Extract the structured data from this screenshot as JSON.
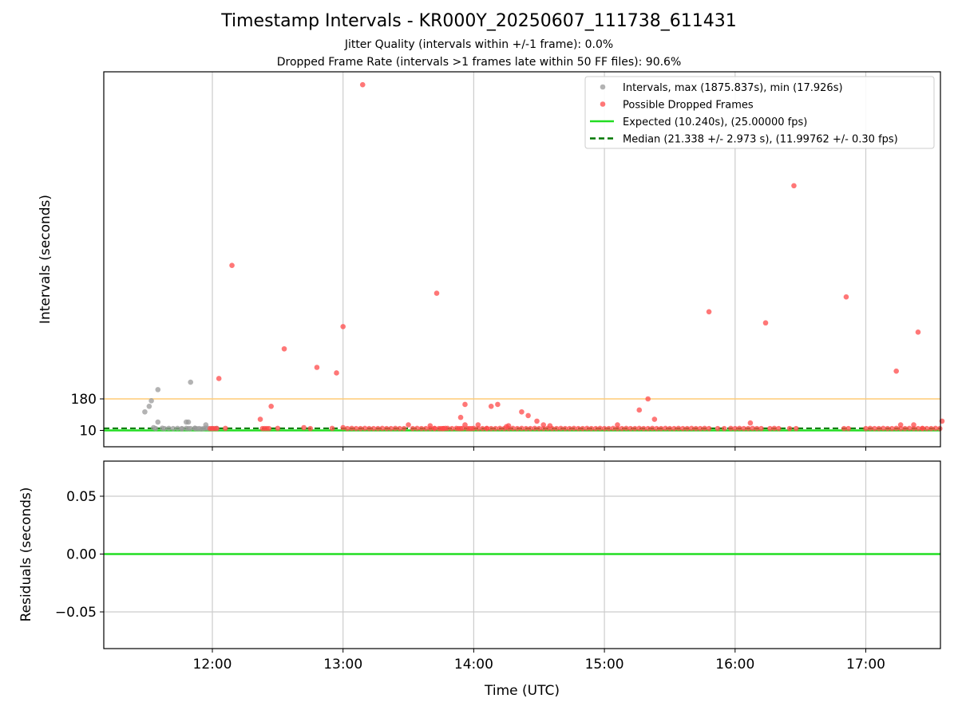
{
  "titles": {
    "main": "Timestamp Intervals - KR000Y_20250607_111738_611431",
    "sub1": "Jitter Quality (intervals within +/-1 frame): 0.0%",
    "sub2": "Dropped Frame Rate (intervals >1 frames late within 50 FF files): 90.6%"
  },
  "chart_data": [
    {
      "type": "scatter",
      "ylabel": "Intervals (seconds)",
      "xlabel": "",
      "x_ticks": [
        "12:00",
        "13:00",
        "14:00",
        "15:00",
        "16:00",
        "17:00"
      ],
      "y_ticks": [
        10,
        180
      ],
      "xlim": [
        "11:10",
        "17:36"
      ],
      "grid_x": true,
      "legend_position": "top-right",
      "colors": {
        "intervals": "#9a9a9a",
        "dropped": "#ff4a4a",
        "expected": "#22dd22",
        "median": "#007700",
        "threshold": "#ffcc77"
      },
      "reference_lines": [
        {
          "name": "threshold",
          "y": 180
        },
        {
          "name": "expected",
          "y": 10.24
        },
        {
          "name": "median",
          "y": 21.338
        }
      ],
      "legend": [
        {
          "key": "intervals",
          "label": "Intervals, max (1875.837s), min (17.926s)"
        },
        {
          "key": "dropped",
          "label": "Possible Dropped Frames"
        },
        {
          "key": "expected",
          "label": "Expected (10.240s), (25.00000 fps)"
        },
        {
          "key": "median",
          "label": "Median (21.338 +/- 2.973 s), (11.99762 +/- 0.30 fps)"
        }
      ],
      "series": [
        {
          "name": "Intervals, max (1875.837s), min (17.926s)",
          "points": [
            [
              "11:29",
              110
            ],
            [
              "11:31",
              140
            ],
            [
              "11:32",
              170
            ],
            [
              "11:33",
              25
            ],
            [
              "11:34",
              20
            ],
            [
              "11:35",
              55
            ],
            [
              "11:37",
              22
            ],
            [
              "11:38",
              20
            ],
            [
              "11:40",
              21
            ],
            [
              "11:42",
              20
            ],
            [
              "11:44",
              21
            ],
            [
              "11:46",
              20
            ],
            [
              "11:48",
              21
            ],
            [
              "11:50",
              20
            ],
            [
              "11:52",
              21
            ],
            [
              "11:54",
              20
            ],
            [
              "11:56",
              20
            ],
            [
              "11:58",
              21
            ],
            [
              "12:00",
              20
            ],
            [
              "12:02",
              21
            ],
            [
              "11:35",
              230
            ],
            [
              "11:46",
              18
            ],
            [
              "11:49",
              20
            ],
            [
              "11:52",
              22
            ],
            [
              "11:53",
              19
            ],
            [
              "11:55",
              18
            ],
            [
              "11:57",
              22
            ],
            [
              "11:48",
              55
            ],
            [
              "11:49",
              55
            ],
            [
              "11:50",
              270
            ],
            [
              "11:57",
              40
            ]
          ]
        },
        {
          "name": "Possible Dropped Frames",
          "points": [
            [
              "11:59",
              20
            ],
            [
              "12:00",
              20
            ],
            [
              "12:01",
              20
            ],
            [
              "12:02",
              20
            ],
            [
              "12:03",
              290
            ],
            [
              "12:06",
              21
            ],
            [
              "12:09",
              900
            ],
            [
              "12:22",
              70
            ],
            [
              "12:23",
              20
            ],
            [
              "12:24",
              20
            ],
            [
              "12:25",
              20
            ],
            [
              "12:26",
              20
            ],
            [
              "12:27",
              140
            ],
            [
              "12:30",
              21
            ],
            [
              "12:33",
              450
            ],
            [
              "12:42",
              25
            ],
            [
              "12:45",
              20
            ],
            [
              "12:48",
              350
            ],
            [
              "12:55",
              21
            ],
            [
              "12:57",
              320
            ],
            [
              "13:00",
              25
            ],
            [
              "13:02",
              20
            ],
            [
              "13:04",
              21
            ],
            [
              "13:06",
              20
            ],
            [
              "13:08",
              20
            ],
            [
              "13:10",
              21
            ],
            [
              "13:12",
              20
            ],
            [
              "13:14",
              20
            ],
            [
              "13:16",
              20
            ],
            [
              "13:18",
              21
            ],
            [
              "13:20",
              20
            ],
            [
              "13:22",
              20
            ],
            [
              "13:24",
              21
            ],
            [
              "13:26",
              20
            ],
            [
              "13:28",
              20
            ],
            [
              "13:30",
              40
            ],
            [
              "13:32",
              20
            ],
            [
              "13:34",
              21
            ],
            [
              "13:36",
              20
            ],
            [
              "13:38",
              20
            ],
            [
              "13:40",
              20
            ],
            [
              "13:42",
              21
            ],
            [
              "13:44",
              20
            ],
            [
              "13:46",
              20
            ],
            [
              "13:48",
              21
            ],
            [
              "13:50",
              20
            ],
            [
              "13:52",
              21
            ],
            [
              "13:54",
              20
            ],
            [
              "13:56",
              40
            ],
            [
              "13:58",
              20
            ],
            [
              "13:00",
              570
            ],
            [
              "13:09",
              1875
            ],
            [
              "13:40",
              35
            ],
            [
              "13:42",
              20
            ],
            [
              "13:43",
              750
            ],
            [
              "13:45",
              20
            ],
            [
              "13:46",
              20
            ],
            [
              "13:47",
              21
            ],
            [
              "13:53",
              20
            ],
            [
              "13:55",
              21
            ],
            [
              "13:57",
              20
            ],
            [
              "13:59",
              20
            ],
            [
              "14:00",
              21
            ],
            [
              "14:02",
              20
            ],
            [
              "14:04",
              20
            ],
            [
              "14:06",
              21
            ],
            [
              "14:08",
              20
            ],
            [
              "14:10",
              20
            ],
            [
              "14:12",
              21
            ],
            [
              "14:14",
              20
            ],
            [
              "14:16",
              20
            ],
            [
              "14:18",
              21
            ],
            [
              "14:20",
              20
            ],
            [
              "14:22",
              21
            ],
            [
              "14:24",
              20
            ],
            [
              "14:26",
              20
            ],
            [
              "14:28",
              21
            ],
            [
              "14:30",
              20
            ],
            [
              "14:32",
              20
            ],
            [
              "14:34",
              21
            ],
            [
              "14:36",
              20
            ],
            [
              "14:38",
              20
            ],
            [
              "14:40",
              21
            ],
            [
              "14:42",
              20
            ],
            [
              "14:44",
              20
            ],
            [
              "14:46",
              21
            ],
            [
              "14:48",
              20
            ],
            [
              "14:50",
              20
            ],
            [
              "14:52",
              21
            ],
            [
              "14:54",
              20
            ],
            [
              "14:56",
              20
            ],
            [
              "14:58",
              21
            ],
            [
              "15:00",
              20
            ],
            [
              "15:02",
              20
            ],
            [
              "15:04",
              21
            ],
            [
              "15:06",
              20
            ],
            [
              "15:08",
              20
            ],
            [
              "15:10",
              21
            ],
            [
              "15:12",
              20
            ],
            [
              "15:14",
              20
            ],
            [
              "15:16",
              21
            ],
            [
              "15:18",
              20
            ],
            [
              "15:20",
              20
            ],
            [
              "15:22",
              21
            ],
            [
              "15:24",
              20
            ],
            [
              "15:26",
              20
            ],
            [
              "15:28",
              21
            ],
            [
              "15:30",
              20
            ],
            [
              "15:32",
              20
            ],
            [
              "15:34",
              21
            ],
            [
              "15:36",
              20
            ],
            [
              "15:38",
              20
            ],
            [
              "15:40",
              21
            ],
            [
              "15:42",
              20
            ],
            [
              "15:44",
              20
            ],
            [
              "15:46",
              21
            ],
            [
              "15:48",
              20
            ],
            [
              "13:54",
              80
            ],
            [
              "13:56",
              150
            ],
            [
              "14:02",
              40
            ],
            [
              "14:06",
              20
            ],
            [
              "14:08",
              140
            ],
            [
              "14:11",
              150
            ],
            [
              "14:15",
              30
            ],
            [
              "14:16",
              35
            ],
            [
              "14:22",
              110
            ],
            [
              "14:25",
              90
            ],
            [
              "14:29",
              60
            ],
            [
              "14:32",
              40
            ],
            [
              "14:35",
              35
            ],
            [
              "15:06",
              40
            ],
            [
              "15:16",
              120
            ],
            [
              "15:20",
              180
            ],
            [
              "15:23",
              70
            ],
            [
              "15:48",
              650
            ],
            [
              "15:52",
              20
            ],
            [
              "15:55",
              20
            ],
            [
              "15:58",
              21
            ],
            [
              "16:00",
              20
            ],
            [
              "16:02",
              21
            ],
            [
              "16:04",
              20
            ],
            [
              "16:06",
              20
            ],
            [
              "16:07",
              50
            ],
            [
              "16:08",
              21
            ],
            [
              "16:10",
              20
            ],
            [
              "16:12",
              20
            ],
            [
              "16:14",
              590
            ],
            [
              "16:16",
              20
            ],
            [
              "16:18",
              21
            ],
            [
              "16:20",
              20
            ],
            [
              "16:25",
              20
            ],
            [
              "16:27",
              1330
            ],
            [
              "16:28",
              20
            ],
            [
              "16:50",
              20
            ],
            [
              "16:52",
              20
            ],
            [
              "16:51",
              730
            ],
            [
              "17:00",
              20
            ],
            [
              "17:02",
              21
            ],
            [
              "17:04",
              20
            ],
            [
              "17:06",
              20
            ],
            [
              "17:08",
              21
            ],
            [
              "17:10",
              20
            ],
            [
              "17:12",
              20
            ],
            [
              "17:14",
              21
            ],
            [
              "17:16",
              20
            ],
            [
              "17:18",
              20
            ],
            [
              "17:20",
              21
            ],
            [
              "17:22",
              20
            ],
            [
              "17:24",
              20
            ],
            [
              "17:26",
              21
            ],
            [
              "17:28",
              20
            ],
            [
              "17:30",
              20
            ],
            [
              "17:32",
              21
            ],
            [
              "17:34",
              20
            ],
            [
              "17:36",
              20
            ],
            [
              "17:14",
              330
            ],
            [
              "17:16",
              40
            ],
            [
              "17:24",
              540
            ],
            [
              "17:26",
              20
            ],
            [
              "17:22",
              40
            ],
            [
              "17:35",
              60
            ]
          ]
        }
      ]
    },
    {
      "type": "line",
      "xlabel": "Time (UTC)",
      "ylabel": "Residuals (seconds)",
      "x_ticks": [
        "12:00",
        "13:00",
        "14:00",
        "15:00",
        "16:00",
        "17:00"
      ],
      "y_ticks": [
        "0.05",
        "0.00",
        "−0.05"
      ],
      "xlim": [
        "11:10",
        "17:36"
      ],
      "ylim": [
        -0.08,
        0.08
      ],
      "grid": true,
      "series": [
        {
          "name": "residuals",
          "x": [
            "11:10",
            "17:36"
          ],
          "values": [
            0.0,
            0.0
          ]
        }
      ]
    }
  ]
}
